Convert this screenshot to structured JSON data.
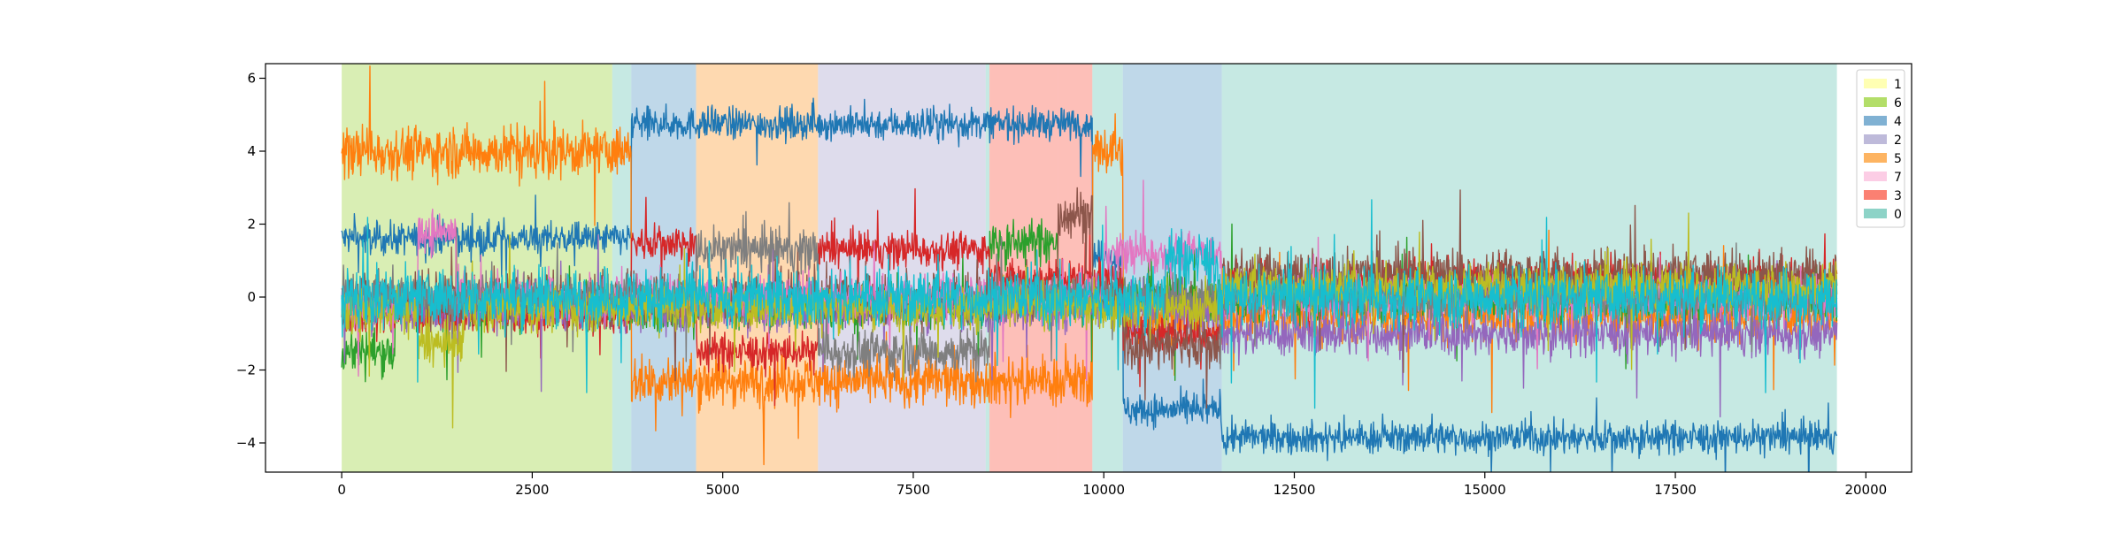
{
  "chart_data": {
    "type": "line",
    "title": "",
    "xlabel": "",
    "ylabel": "",
    "xlim": [
      -1000,
      20600
    ],
    "ylim": [
      -4.8,
      6.4
    ],
    "x_ticks": [
      0,
      2500,
      5000,
      7500,
      10000,
      12500,
      15000,
      17500,
      20000
    ],
    "y_ticks": [
      -4,
      -2,
      0,
      2,
      4,
      6
    ],
    "grid": false,
    "legend_position": "top-right",
    "legend": [
      {
        "label": "1",
        "color": "#ffffb3"
      },
      {
        "label": "6",
        "color": "#b3de69"
      },
      {
        "label": "4",
        "color": "#80b1d3"
      },
      {
        "label": "2",
        "color": "#bebada"
      },
      {
        "label": "5",
        "color": "#fdb462"
      },
      {
        "label": "7",
        "color": "#fccde5"
      },
      {
        "label": "3",
        "color": "#fb8072"
      },
      {
        "label": "0",
        "color": "#8dd3c7"
      }
    ],
    "regions": [
      {
        "label": "6",
        "x_start": 0,
        "x_end": 3550
      },
      {
        "label": "0",
        "x_start": 3550,
        "x_end": 3800
      },
      {
        "label": "4",
        "x_start": 3800,
        "x_end": 4650
      },
      {
        "label": "5",
        "x_start": 4650,
        "x_end": 6250
      },
      {
        "label": "2",
        "x_start": 6250,
        "x_end": 8450
      },
      {
        "label": "0",
        "x_start": 8450,
        "x_end": 8500
      },
      {
        "label": "3",
        "x_start": 8500,
        "x_end": 9400
      },
      {
        "label": "3",
        "x_start": 9400,
        "x_end": 9850
      },
      {
        "label": "0",
        "x_start": 9850,
        "x_end": 10250
      },
      {
        "label": "4",
        "x_start": 10250,
        "x_end": 11550
      },
      {
        "label": "0",
        "x_start": 11550,
        "x_end": 19620
      }
    ],
    "series": [
      {
        "color": "#1f77b4",
        "noise": 0.22,
        "segments": [
          [
            0,
            1.6
          ],
          [
            3800,
            4.75
          ],
          [
            9850,
            1.1
          ],
          [
            10250,
            -3.1
          ],
          [
            11550,
            -3.85
          ],
          [
            19620,
            -3.85
          ]
        ]
      },
      {
        "color": "#ff7f0e",
        "noise": 0.35,
        "segments": [
          [
            0,
            4.0
          ],
          [
            3800,
            -2.3
          ],
          [
            9850,
            4.0
          ],
          [
            10250,
            -0.5
          ],
          [
            19620,
            -0.5
          ]
        ]
      },
      {
        "color": "#2ca02c",
        "noise": 0.3,
        "segments": [
          [
            0,
            -1.5
          ],
          [
            700,
            -0.3
          ],
          [
            8500,
            1.5
          ],
          [
            9400,
            0.0
          ],
          [
            19620,
            0.0
          ]
        ]
      },
      {
        "color": "#d62728",
        "noise": 0.25,
        "segments": [
          [
            0,
            -0.5
          ],
          [
            3800,
            1.5
          ],
          [
            4650,
            -1.5
          ],
          [
            6250,
            1.3
          ],
          [
            8500,
            0.5
          ],
          [
            10250,
            -1.0
          ],
          [
            11550,
            0.5
          ],
          [
            19620,
            0.5
          ]
        ]
      },
      {
        "color": "#9467bd",
        "noise": 0.3,
        "segments": [
          [
            0,
            -0.3
          ],
          [
            11550,
            -1.0
          ],
          [
            19620,
            -1.0
          ]
        ]
      },
      {
        "color": "#8c564b",
        "noise": 0.35,
        "segments": [
          [
            0,
            0.0
          ],
          [
            9400,
            2.3
          ],
          [
            9850,
            0.0
          ],
          [
            10250,
            -1.3
          ],
          [
            11550,
            0.6
          ],
          [
            19620,
            0.6
          ]
        ]
      },
      {
        "color": "#e377c2",
        "noise": 0.3,
        "segments": [
          [
            0,
            -0.2
          ],
          [
            1000,
            1.8
          ],
          [
            1500,
            0.0
          ],
          [
            10000,
            1.2
          ],
          [
            11550,
            0.0
          ],
          [
            19620,
            0.0
          ]
        ]
      },
      {
        "color": "#7f7f7f",
        "noise": 0.3,
        "segments": [
          [
            0,
            0.0
          ],
          [
            4650,
            1.3
          ],
          [
            6250,
            -1.5
          ],
          [
            8500,
            0.0
          ],
          [
            19620,
            0.0
          ]
        ]
      },
      {
        "color": "#bcbd22",
        "noise": 0.3,
        "segments": [
          [
            0,
            -0.4
          ],
          [
            1000,
            -1.3
          ],
          [
            1600,
            -0.3
          ],
          [
            11550,
            0.3
          ],
          [
            19620,
            0.3
          ]
        ]
      },
      {
        "color": "#17becf",
        "noise": 0.4,
        "segments": [
          [
            0,
            0.0
          ],
          [
            10800,
            1.0
          ],
          [
            11500,
            0.0
          ],
          [
            19620,
            0.0
          ]
        ]
      }
    ]
  }
}
